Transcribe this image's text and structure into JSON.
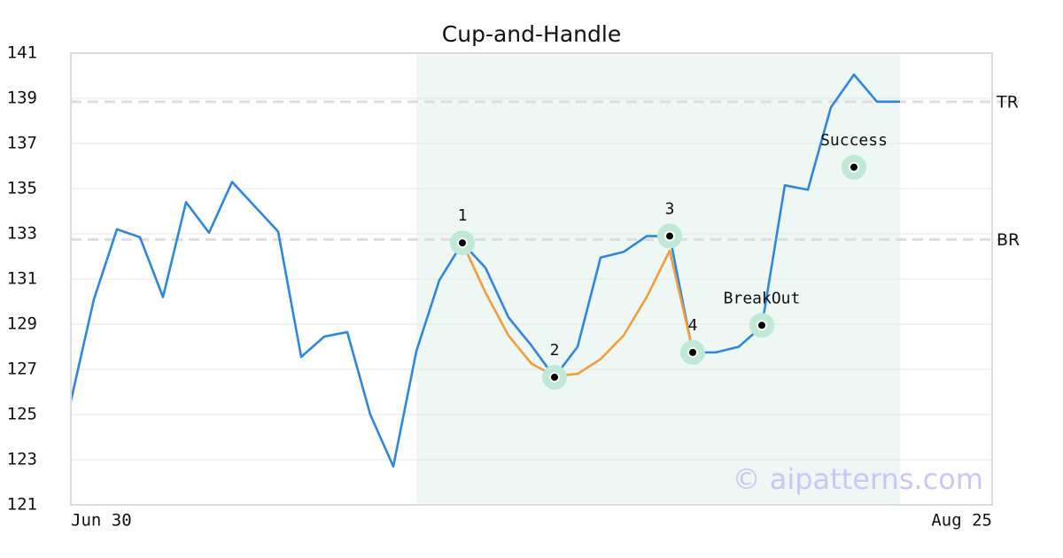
{
  "chart_data": {
    "type": "line",
    "title": "Cup-and-Handle",
    "xlim": [
      0,
      40
    ],
    "xticks": [
      {
        "value": 0,
        "label": "Jun 30"
      },
      {
        "value": 40,
        "label": "Aug 25"
      }
    ],
    "ylim": [
      121,
      141
    ],
    "yticks": [
      121,
      123,
      125,
      127,
      129,
      131,
      133,
      135,
      137,
      139,
      141
    ],
    "grid": true,
    "highlight": [
      15,
      36
    ],
    "highlight_color": "#eef7f3",
    "series": [
      {
        "color": "#2e86de",
        "x": [
          0,
          1,
          2,
          3,
          4,
          5,
          6,
          7,
          8,
          9,
          10,
          11,
          12,
          13,
          14,
          15,
          16,
          17,
          18,
          19,
          20,
          21,
          22,
          23,
          24,
          25,
          26,
          27,
          28,
          29,
          30,
          31,
          32,
          33,
          34,
          35,
          36
        ],
        "values": [
          125.6,
          130.1,
          133.2,
          132.85,
          130.2,
          134.4,
          133.05,
          135.3,
          134.2,
          133.1,
          127.55,
          128.45,
          128.65,
          125.0,
          122.7,
          127.8,
          130.95,
          132.6,
          131.5,
          129.3,
          128.05,
          126.65,
          128.0,
          131.95,
          132.2,
          132.9,
          132.9,
          127.75,
          127.75,
          128.0,
          128.9,
          135.15,
          134.95,
          138.6,
          140.05,
          138.85,
          138.85
        ]
      },
      {
        "color": "#f39c3c",
        "x": [
          17,
          18,
          19,
          20,
          21,
          22,
          23,
          24,
          25,
          26,
          27
        ],
        "values": [
          132.6,
          130.4,
          128.5,
          127.25,
          126.7,
          126.8,
          127.45,
          128.5,
          130.2,
          132.25,
          127.85
        ]
      }
    ],
    "levels": [
      {
        "label": "TR",
        "value": 138.85
      },
      {
        "label": "BR",
        "value": 132.75
      }
    ],
    "points": [
      {
        "label": "1",
        "x": 17,
        "y": 132.6
      },
      {
        "label": "2",
        "x": 21,
        "y": 126.65
      },
      {
        "label": "3",
        "x": 26,
        "y": 132.9
      },
      {
        "label": "4",
        "x": 27,
        "y": 127.75
      },
      {
        "label": "BreakOut",
        "x": 30,
        "y": 128.95
      },
      {
        "label": "Success",
        "x": 34,
        "y": 135.95
      }
    ],
    "watermark": "© aipatterns.com"
  }
}
